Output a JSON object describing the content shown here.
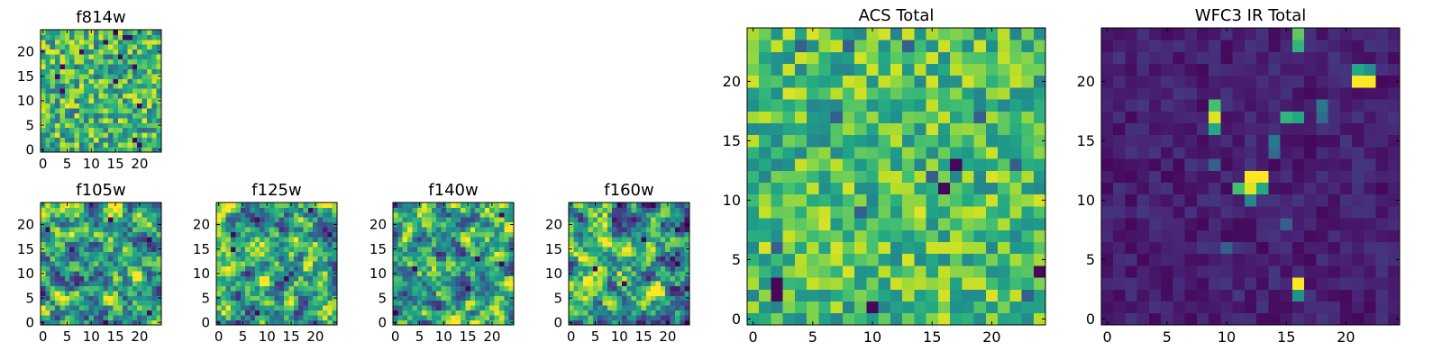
{
  "figure": {
    "background": "#ffffff",
    "colormap": "viridis"
  },
  "chart_data": [
    {
      "type": "heatmap",
      "title": "f814w",
      "seed": 11,
      "style": "noise",
      "xticks": [
        "0",
        "5",
        "10",
        "15",
        "20"
      ],
      "yticks": [
        "0",
        "5",
        "10",
        "15",
        "20"
      ],
      "xlim": [
        -0.5,
        24.5
      ],
      "ylim": [
        -0.5,
        24.5
      ]
    },
    {
      "type": "heatmap",
      "title": "f105w",
      "seed": 23,
      "style": "smooth",
      "xticks": [
        "0",
        "5",
        "10",
        "15",
        "20"
      ],
      "yticks": [
        "0",
        "5",
        "10",
        "15",
        "20"
      ],
      "xlim": [
        -0.5,
        24.5
      ],
      "ylim": [
        -0.5,
        24.5
      ]
    },
    {
      "type": "heatmap",
      "title": "f125w",
      "seed": 37,
      "style": "smooth",
      "xticks": [
        "0",
        "5",
        "10",
        "15",
        "20"
      ],
      "yticks": [
        "0",
        "5",
        "10",
        "15",
        "20"
      ],
      "xlim": [
        -0.5,
        24.5
      ],
      "ylim": [
        -0.5,
        24.5
      ]
    },
    {
      "type": "heatmap",
      "title": "f140w",
      "seed": 41,
      "style": "smooth",
      "xticks": [
        "0",
        "5",
        "10",
        "15",
        "20"
      ],
      "yticks": [
        "0",
        "5",
        "10",
        "15",
        "20"
      ],
      "xlim": [
        -0.5,
        24.5
      ],
      "ylim": [
        -0.5,
        24.5
      ]
    },
    {
      "type": "heatmap",
      "title": "f160w",
      "seed": 53,
      "style": "smooth",
      "xticks": [
        "0",
        "5",
        "10",
        "15",
        "20"
      ],
      "yticks": [
        "0",
        "5",
        "10",
        "15",
        "20"
      ],
      "xlim": [
        -0.5,
        24.5
      ],
      "ylim": [
        -0.5,
        24.5
      ]
    },
    {
      "type": "heatmap",
      "title": "ACS Total",
      "seed": 67,
      "style": "acs",
      "xticks": [
        "0",
        "5",
        "10",
        "15",
        "20"
      ],
      "yticks": [
        "0",
        "5",
        "10",
        "15",
        "20"
      ],
      "xlim": [
        -0.5,
        24.5
      ],
      "ylim": [
        -0.5,
        24.5
      ]
    },
    {
      "type": "heatmap",
      "title": "WFC3 IR Total",
      "seed": 79,
      "style": "ir",
      "xticks": [
        "0",
        "5",
        "10",
        "15",
        "20"
      ],
      "yticks": [
        "0",
        "5",
        "10",
        "15",
        "20"
      ],
      "xlim": [
        -0.5,
        24.5
      ],
      "ylim": [
        -0.5,
        24.5
      ],
      "bright_pixels": [
        {
          "x": 16,
          "y": 24,
          "v": 0.75
        },
        {
          "x": 16,
          "y": 23,
          "v": 0.65
        },
        {
          "x": 21,
          "y": 21,
          "v": 0.6
        },
        {
          "x": 22,
          "y": 21,
          "v": 0.5
        },
        {
          "x": 21,
          "y": 20,
          "v": 1.0
        },
        {
          "x": 22,
          "y": 20,
          "v": 1.0
        },
        {
          "x": 9,
          "y": 18,
          "v": 0.7
        },
        {
          "x": 9,
          "y": 17,
          "v": 0.95
        },
        {
          "x": 9,
          "y": 16,
          "v": 0.6
        },
        {
          "x": 15,
          "y": 17,
          "v": 0.65
        },
        {
          "x": 16,
          "y": 17,
          "v": 0.6
        },
        {
          "x": 18,
          "y": 18,
          "v": 0.4
        },
        {
          "x": 18,
          "y": 17,
          "v": 0.35
        },
        {
          "x": 14,
          "y": 15,
          "v": 0.4
        },
        {
          "x": 14,
          "y": 14,
          "v": 0.35
        },
        {
          "x": 12,
          "y": 12,
          "v": 1.0
        },
        {
          "x": 13,
          "y": 12,
          "v": 1.0
        },
        {
          "x": 11,
          "y": 11,
          "v": 0.7
        },
        {
          "x": 12,
          "y": 11,
          "v": 0.95
        },
        {
          "x": 13,
          "y": 11,
          "v": 0.6
        },
        {
          "x": 12,
          "y": 10,
          "v": 0.45
        },
        {
          "x": 16,
          "y": 3,
          "v": 1.0
        },
        {
          "x": 16,
          "y": 2,
          "v": 0.5
        },
        {
          "x": 9,
          "y": 13,
          "v": 0.3
        },
        {
          "x": 10,
          "y": 6,
          "v": 0.3
        },
        {
          "x": 15,
          "y": 8,
          "v": 0.3
        }
      ]
    }
  ]
}
